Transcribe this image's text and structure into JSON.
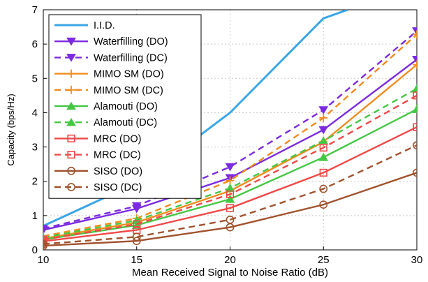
{
  "chart_data": {
    "type": "line",
    "xlabel": "Mean Received Signal to Noise Ratio (dB)",
    "ylabel": "Capacity (bps/Hz)",
    "xlim": [
      10,
      30
    ],
    "ylim": [
      0,
      7
    ],
    "xticks": [
      10,
      15,
      20,
      25,
      30
    ],
    "yticks": [
      0,
      1,
      2,
      3,
      4,
      5,
      6,
      7
    ],
    "xtick_labels": [
      "10",
      "15",
      "20",
      "25",
      "30"
    ],
    "ytick_labels": [
      "0",
      "1",
      "2",
      "3",
      "4",
      "5",
      "6",
      "7"
    ],
    "grid": true,
    "legend_position": "top-left",
    "x": [
      10,
      15,
      20,
      25,
      30
    ],
    "series": [
      {
        "name": "I.I.D.",
        "color": "#3aa6e6",
        "dash": "solid",
        "marker": "none",
        "x": [
          10,
          15,
          20,
          25,
          26.3
        ],
        "values": [
          0.7,
          1.95,
          4.0,
          6.75,
          7.0
        ]
      },
      {
        "name": "Waterfilling (DO)",
        "color": "#7b2ae0",
        "dash": "solid",
        "marker": "triangle-down",
        "values": [
          0.58,
          1.2,
          2.1,
          3.5,
          5.55
        ]
      },
      {
        "name": "Waterfilling (DC)",
        "color": "#7b2ae0",
        "dash": "dashed",
        "marker": "triangle-down",
        "values": [
          0.62,
          1.28,
          2.42,
          4.08,
          6.38
        ]
      },
      {
        "name": "MIMO SM (DO)",
        "color": "#f08c1e",
        "dash": "solid",
        "marker": "plus",
        "values": [
          0.33,
          0.8,
          1.72,
          3.15,
          5.4
        ]
      },
      {
        "name": "MIMO SM (DC)",
        "color": "#f08c1e",
        "dash": "dashed",
        "marker": "plus",
        "values": [
          0.4,
          0.92,
          2.02,
          3.85,
          6.28
        ]
      },
      {
        "name": "Alamouti (DO)",
        "color": "#44c844",
        "dash": "solid",
        "marker": "triangle-up",
        "values": [
          0.3,
          0.72,
          1.48,
          2.7,
          4.1
        ]
      },
      {
        "name": "Alamouti (DC)",
        "color": "#44c844",
        "dash": "dashed",
        "marker": "triangle-up",
        "values": [
          0.36,
          0.86,
          1.8,
          3.18,
          4.7
        ]
      },
      {
        "name": "MRC (DO)",
        "color": "#f04848",
        "dash": "solid",
        "marker": "square",
        "values": [
          0.25,
          0.58,
          1.22,
          2.25,
          3.58
        ]
      },
      {
        "name": "MRC (DC)",
        "color": "#f04848",
        "dash": "dashed",
        "marker": "square",
        "values": [
          0.3,
          0.75,
          1.62,
          2.98,
          4.5
        ]
      },
      {
        "name": "SISO (DO)",
        "color": "#a0522d",
        "dash": "solid",
        "marker": "circle",
        "values": [
          0.12,
          0.26,
          0.66,
          1.32,
          2.25
        ]
      },
      {
        "name": "SISO (DC)",
        "color": "#a0522d",
        "dash": "dashed",
        "marker": "circle",
        "values": [
          0.17,
          0.38,
          0.88,
          1.78,
          3.05
        ]
      }
    ]
  }
}
